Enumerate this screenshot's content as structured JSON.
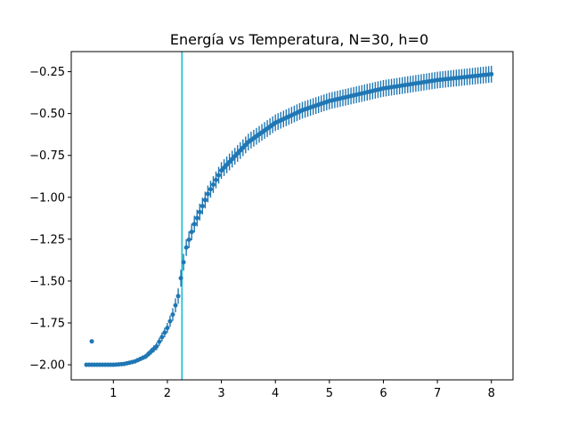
{
  "chart_data": {
    "type": "scatter",
    "title": "Energía vs Temperatura, N=30, h=0",
    "xlabel": "",
    "ylabel": "",
    "xlim": [
      0.22,
      8.4
    ],
    "ylim": [
      -2.09,
      -0.13
    ],
    "xticks": [
      1,
      2,
      3,
      4,
      5,
      6,
      7,
      8
    ],
    "xtick_labels": [
      "1",
      "2",
      "3",
      "4",
      "5",
      "6",
      "7",
      "8"
    ],
    "yticks": [
      -2.0,
      -1.75,
      -1.5,
      -1.25,
      -1.0,
      -0.75,
      -0.5,
      -0.25
    ],
    "ytick_labels": [
      "−2.00",
      "−1.75",
      "−1.50",
      "−1.25",
      "−1.00",
      "−0.75",
      "−0.50",
      "−0.25"
    ],
    "grid": false,
    "series_color": "#1f77b4",
    "vline": {
      "x": 2.27,
      "color": "#17becf"
    },
    "x_start": 0.5,
    "x_end": 8.0,
    "x_step": 0.05,
    "outliers": [
      {
        "x": 0.6,
        "y": -1.86
      }
    ],
    "curve_points": [
      [
        0.5,
        -2.0
      ],
      [
        1.0,
        -2.0
      ],
      [
        1.2,
        -1.995
      ],
      [
        1.4,
        -1.98
      ],
      [
        1.6,
        -1.95
      ],
      [
        1.8,
        -1.89
      ],
      [
        2.0,
        -1.78
      ],
      [
        2.1,
        -1.7
      ],
      [
        2.2,
        -1.59
      ],
      [
        2.27,
        -1.44
      ],
      [
        2.35,
        -1.3
      ],
      [
        2.5,
        -1.16
      ],
      [
        2.75,
        -0.98
      ],
      [
        3.0,
        -0.84
      ],
      [
        3.5,
        -0.67
      ],
      [
        4.0,
        -0.555
      ],
      [
        4.5,
        -0.48
      ],
      [
        5.0,
        -0.425
      ],
      [
        6.0,
        -0.35
      ],
      [
        7.0,
        -0.3
      ],
      [
        8.0,
        -0.265
      ]
    ],
    "error_points": [
      [
        0.5,
        0.0
      ],
      [
        1.0,
        0.005
      ],
      [
        1.5,
        0.012
      ],
      [
        2.0,
        0.03
      ],
      [
        2.25,
        0.05
      ],
      [
        2.5,
        0.05
      ],
      [
        3.0,
        0.05
      ],
      [
        4.0,
        0.05
      ],
      [
        6.0,
        0.05
      ],
      [
        8.0,
        0.05
      ]
    ]
  }
}
